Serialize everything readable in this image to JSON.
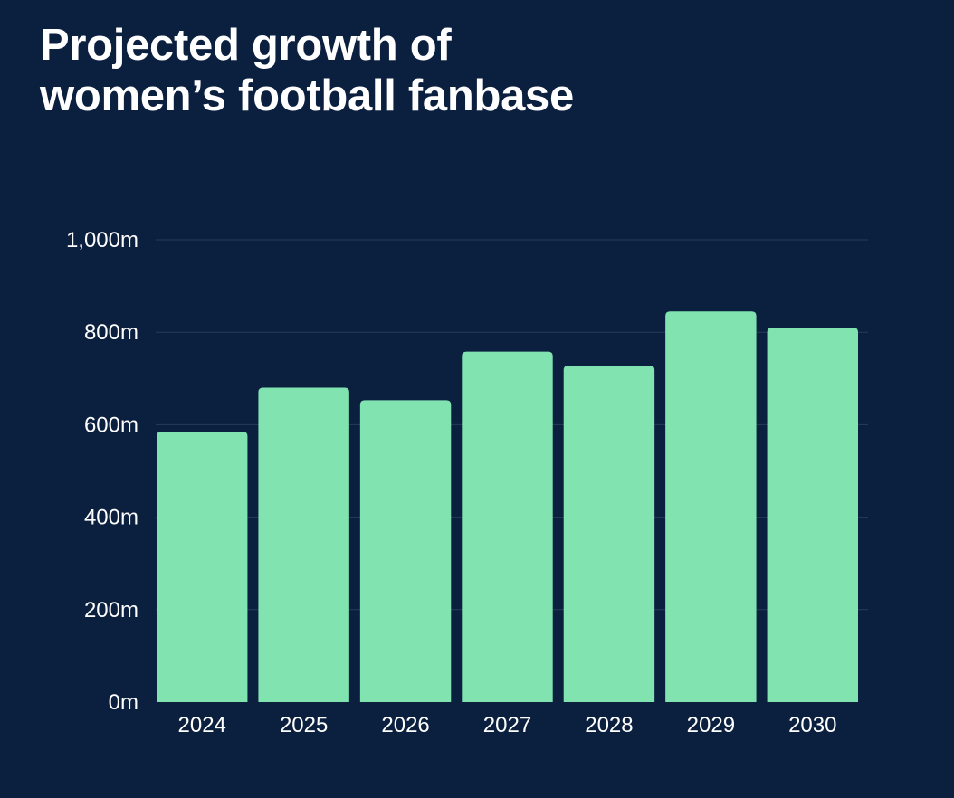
{
  "title": {
    "line1": "Projected growth of",
    "line2": "women’s football fanbase"
  },
  "colors": {
    "background": "#0b1f3f",
    "bar": "#80e3b0",
    "gridline": "#2a3b5a",
    "text": "#ffffff"
  },
  "chart_data": {
    "type": "bar",
    "title": "Projected growth of women’s football fanbase",
    "xlabel": "",
    "ylabel": "",
    "categories": [
      "2024",
      "2025",
      "2026",
      "2027",
      "2028",
      "2029",
      "2030"
    ],
    "values": [
      585,
      680,
      653,
      758,
      728,
      845,
      810
    ],
    "ylim": [
      0,
      1000
    ],
    "yticks": [
      0,
      200,
      400,
      600,
      800,
      1000
    ],
    "ytick_labels": [
      "0m",
      "200m",
      "400m",
      "600m",
      "800m",
      "1,000m"
    ],
    "grid": true,
    "legend": "none"
  }
}
